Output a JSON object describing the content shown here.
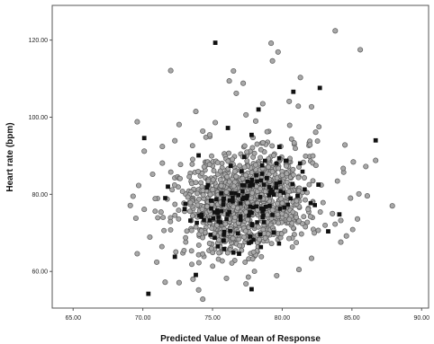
{
  "chart_data": {
    "type": "scatter",
    "title": "",
    "xlabel": "Predicted Value of Mean of Response",
    "ylabel": "Heart rate (bpm)",
    "xlim": [
      63.5,
      90.5
    ],
    "ylim": [
      50.5,
      129
    ],
    "xticks": [
      65,
      70,
      75,
      80,
      85,
      90
    ],
    "xtick_labels": [
      "65.00",
      "70.00",
      "75.00",
      "80.00",
      "85.00",
      "90.00"
    ],
    "yticks": [
      60,
      80,
      100,
      120
    ],
    "ytick_labels": [
      "60.00",
      "80.00",
      "100.00",
      "120.00"
    ],
    "grid": false,
    "legend": "none",
    "marker_colors": {
      "gray": "#a8a8a8",
      "black": "#111111"
    },
    "series": [
      {
        "marker": "gray-circle",
        "points": [
          [
            69.6,
            98.8
          ],
          [
            70.1,
            91.2
          ],
          [
            71.4,
            92.4
          ],
          [
            71.4,
            88.1
          ],
          [
            72.0,
            112.1
          ],
          [
            72.3,
            93.9
          ],
          [
            72.6,
            98.1
          ],
          [
            73.8,
            101.5
          ],
          [
            74.3,
            96.4
          ],
          [
            74.8,
            95.4
          ],
          [
            75.2,
            98.6
          ],
          [
            76.2,
            109.4
          ],
          [
            76.5,
            112.0
          ],
          [
            77.2,
            108.8
          ],
          [
            76.7,
            106.2
          ],
          [
            77.4,
            100.6
          ],
          [
            78.6,
            103.5
          ],
          [
            78.1,
            99.0
          ],
          [
            79.2,
            119.2
          ],
          [
            79.3,
            114.6
          ],
          [
            79.7,
            116.9
          ],
          [
            80.5,
            104.1
          ],
          [
            81.3,
            110.3
          ],
          [
            82.1,
            102.7
          ],
          [
            83.8,
            122.4
          ],
          [
            85.6,
            117.5
          ],
          [
            82.4,
            96.1
          ],
          [
            84.5,
            92.8
          ],
          [
            85.1,
            88.4
          ],
          [
            86.0,
            87.2
          ],
          [
            86.7,
            88.8
          ],
          [
            87.9,
            77.0
          ],
          [
            85.5,
            80.1
          ],
          [
            86.1,
            79.6
          ],
          [
            84.9,
            79.0
          ],
          [
            85.4,
            73.6
          ],
          [
            84.6,
            69.2
          ],
          [
            84.2,
            67.6
          ],
          [
            84.2,
            73.2
          ],
          [
            83.6,
            75.0
          ],
          [
            74.3,
            52.8
          ],
          [
            74.0,
            55.2
          ],
          [
            73.6,
            58.0
          ],
          [
            72.6,
            57.1
          ],
          [
            71.6,
            57.2
          ],
          [
            71.0,
            62.4
          ],
          [
            69.6,
            64.6
          ],
          [
            69.5,
            73.8
          ],
          [
            69.1,
            77.1
          ],
          [
            69.3,
            79.5
          ],
          [
            69.7,
            82.3
          ],
          [
            70.1,
            76.1
          ],
          [
            70.5,
            68.9
          ],
          [
            70.7,
            85.2
          ],
          [
            71.3,
            75.4
          ],
          [
            76.0,
            58.2
          ],
          [
            77.4,
            56.8
          ],
          [
            79.6,
            58.9
          ],
          [
            81.2,
            60.5
          ],
          [
            82.1,
            63.4
          ]
        ]
      },
      {
        "marker": "black-square",
        "points": [
          [
            70.1,
            94.6
          ],
          [
            70.4,
            54.2
          ],
          [
            75.2,
            119.3
          ],
          [
            76.1,
            97.2
          ],
          [
            77.8,
            95.4
          ],
          [
            78.3,
            102.0
          ],
          [
            80.8,
            106.6
          ],
          [
            82.7,
            107.6
          ],
          [
            86.7,
            94.0
          ],
          [
            84.1,
            74.8
          ],
          [
            73.8,
            59.1
          ],
          [
            77.8,
            55.4
          ],
          [
            74.6,
            81.8
          ],
          [
            76.3,
            87.4
          ],
          [
            78.9,
            84.2
          ],
          [
            81.1,
            79.6
          ],
          [
            79.4,
            70.1
          ],
          [
            75.8,
            68.0
          ],
          [
            73.0,
            76.2
          ],
          [
            72.3,
            63.8
          ],
          [
            80.3,
            88.7
          ],
          [
            82.6,
            82.5
          ],
          [
            77.0,
            74.3
          ],
          [
            74.0,
            90.1
          ],
          [
            71.8,
            82.0
          ],
          [
            79.8,
            92.3
          ],
          [
            83.3,
            70.4
          ],
          [
            76.9,
            64.6
          ]
        ]
      }
    ]
  }
}
